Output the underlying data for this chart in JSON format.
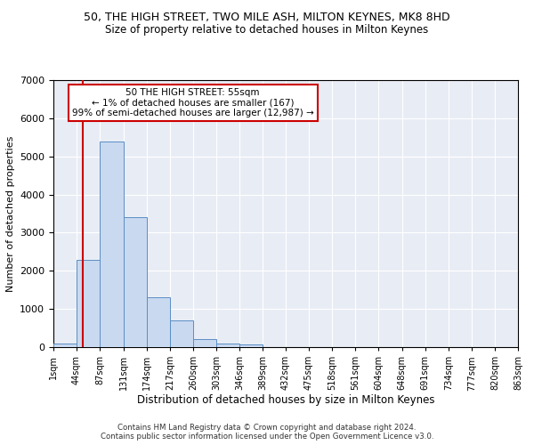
{
  "title1": "50, THE HIGH STREET, TWO MILE ASH, MILTON KEYNES, MK8 8HD",
  "title2": "Size of property relative to detached houses in Milton Keynes",
  "xlabel": "Distribution of detached houses by size in Milton Keynes",
  "ylabel": "Number of detached properties",
  "footnote": "Contains HM Land Registry data © Crown copyright and database right 2024.\nContains public sector information licensed under the Open Government Licence v3.0.",
  "bar_edges": [
    1,
    44,
    87,
    131,
    174,
    217,
    260,
    303,
    346,
    389,
    432,
    475,
    518,
    561,
    604,
    648,
    691,
    734,
    777,
    820,
    863
  ],
  "bar_heights": [
    90,
    2280,
    5400,
    3400,
    1300,
    700,
    200,
    90,
    70,
    0,
    0,
    0,
    0,
    0,
    0,
    0,
    0,
    0,
    0,
    0
  ],
  "bar_color": "#c9d9f0",
  "bar_edge_color": "#5b8ec4",
  "bg_color": "#e8edf5",
  "grid_color": "#ffffff",
  "annotation_text": "50 THE HIGH STREET: 55sqm\n← 1% of detached houses are smaller (167)\n99% of semi-detached houses are larger (12,987) →",
  "red_line_x": 55,
  "ylim": [
    0,
    7000
  ],
  "yticks": [
    0,
    1000,
    2000,
    3000,
    4000,
    5000,
    6000,
    7000
  ],
  "annotation_box_color": "#ffffff",
  "annotation_box_edge": "#cc0000",
  "tick_labels": [
    "1sqm",
    "44sqm",
    "87sqm",
    "131sqm",
    "174sqm",
    "217sqm",
    "260sqm",
    "303sqm",
    "346sqm",
    "389sqm",
    "432sqm",
    "475sqm",
    "518sqm",
    "561sqm",
    "604sqm",
    "648sqm",
    "691sqm",
    "734sqm",
    "777sqm",
    "820sqm",
    "863sqm"
  ]
}
